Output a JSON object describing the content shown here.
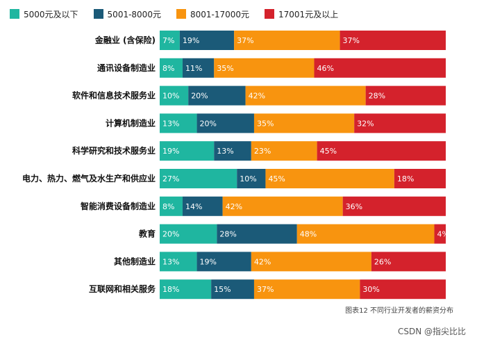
{
  "legend": [
    {
      "label": "5000元及以下",
      "color": "#1fb6a0"
    },
    {
      "label": "5001-8000元",
      "color": "#1b5a78"
    },
    {
      "label": "8001-17000元",
      "color": "#f8940f"
    },
    {
      "label": "17001元及以上",
      "color": "#d4222c"
    }
  ],
  "caption": "图表12 不同行业开发者的薪资分布",
  "watermark": "CSDN @指尖比比",
  "chart_data": {
    "type": "bar",
    "orientation": "horizontal",
    "stacked": true,
    "categories": [
      "金融业 (含保险)",
      "通讯设备制造业",
      "软件和信息技术服务业",
      "计算机制造业",
      "科学研究和技术服务业",
      "电力、热力、燃气及水生产和供应业",
      "智能消费设备制造业",
      "教育",
      "其他制造业",
      "互联网和相关服务"
    ],
    "series": [
      {
        "name": "5000元及以下",
        "color": "#1fb6a0",
        "values": [
          7,
          8,
          10,
          13,
          19,
          27,
          8,
          20,
          13,
          18
        ]
      },
      {
        "name": "5001-8000元",
        "color": "#1b5a78",
        "values": [
          19,
          11,
          20,
          20,
          13,
          10,
          14,
          28,
          19,
          15
        ]
      },
      {
        "name": "8001-17000元",
        "color": "#f8940f",
        "values": [
          37,
          35,
          42,
          35,
          23,
          45,
          42,
          48,
          42,
          37
        ]
      },
      {
        "name": "17001元及以上",
        "color": "#d4222c",
        "values": [
          37,
          46,
          28,
          32,
          45,
          18,
          36,
          4,
          26,
          30
        ]
      }
    ],
    "value_suffix": "%"
  }
}
